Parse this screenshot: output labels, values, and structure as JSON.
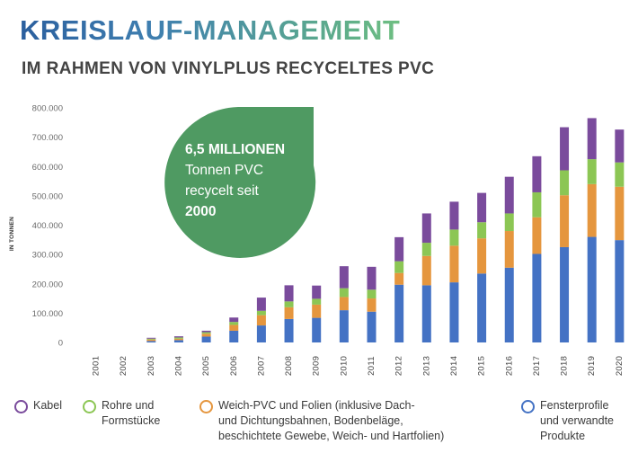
{
  "header": {
    "title": "KREISLAUF-MANAGEMENT",
    "subtitle": "IM RAHMEN VON VINYLPLUS RECYCELTES PVC"
  },
  "callout": {
    "line1": "6,5 MILLIONEN",
    "line2": "Tonnen PVC",
    "line3": "recycelt seit",
    "line4": "2000",
    "color": "#4f9a62"
  },
  "chart_data": {
    "type": "bar",
    "stacked": true,
    "ylabel": "IN TONNEN",
    "xlabel": "",
    "ylim": [
      0,
      800000
    ],
    "yticks": [
      0,
      100000,
      200000,
      300000,
      400000,
      500000,
      600000,
      700000,
      800000
    ],
    "ytick_labels": [
      "0",
      "100.000",
      "200.000",
      "300.000",
      "400.000",
      "500.000",
      "600.000",
      "700.000",
      "800.000"
    ],
    "grid": false,
    "legend_position": "bottom",
    "categories": [
      "2001",
      "2002",
      "2003",
      "2004",
      "2005",
      "2006",
      "2007",
      "2008",
      "2009",
      "2010",
      "2011",
      "2012",
      "2013",
      "2014",
      "2015",
      "2016",
      "2017",
      "2018",
      "2019",
      "2020"
    ],
    "series": [
      {
        "name": "Fensterprofile\nund verwandte\nProdukte",
        "color": "#4472c4",
        "values": [
          0,
          0,
          5000,
          8000,
          20000,
          40000,
          58000,
          80000,
          84000,
          110000,
          105000,
          197000,
          195000,
          205000,
          235000,
          255000,
          302000,
          325000,
          360000,
          349000
        ]
      },
      {
        "name": "Weich-PVC und Folien (inklusive Dach-\nund Dichtungsbahnen, Bodenbeläge,\nbeschichtete Gewebe, Weich- und Hartfolien)",
        "color": "#e5963e",
        "values": [
          0,
          0,
          5000,
          5000,
          10000,
          20000,
          35000,
          40000,
          45000,
          45000,
          45000,
          40000,
          100000,
          125000,
          120000,
          125000,
          125000,
          177000,
          180000,
          182000
        ]
      },
      {
        "name": "Rohre und\nFormstücke",
        "color": "#8cc654",
        "values": [
          0,
          0,
          3000,
          4000,
          5000,
          10000,
          15000,
          20000,
          20000,
          30000,
          30000,
          40000,
          45000,
          55000,
          55000,
          60000,
          85000,
          85000,
          85000,
          83000
        ]
      },
      {
        "name": "Kabel",
        "color": "#7a4b9c",
        "values": [
          0,
          0,
          3000,
          4000,
          5000,
          15000,
          45000,
          55000,
          45000,
          75000,
          78000,
          82000,
          100000,
          95000,
          100000,
          125000,
          123000,
          147000,
          140000,
          112000
        ]
      }
    ]
  }
}
